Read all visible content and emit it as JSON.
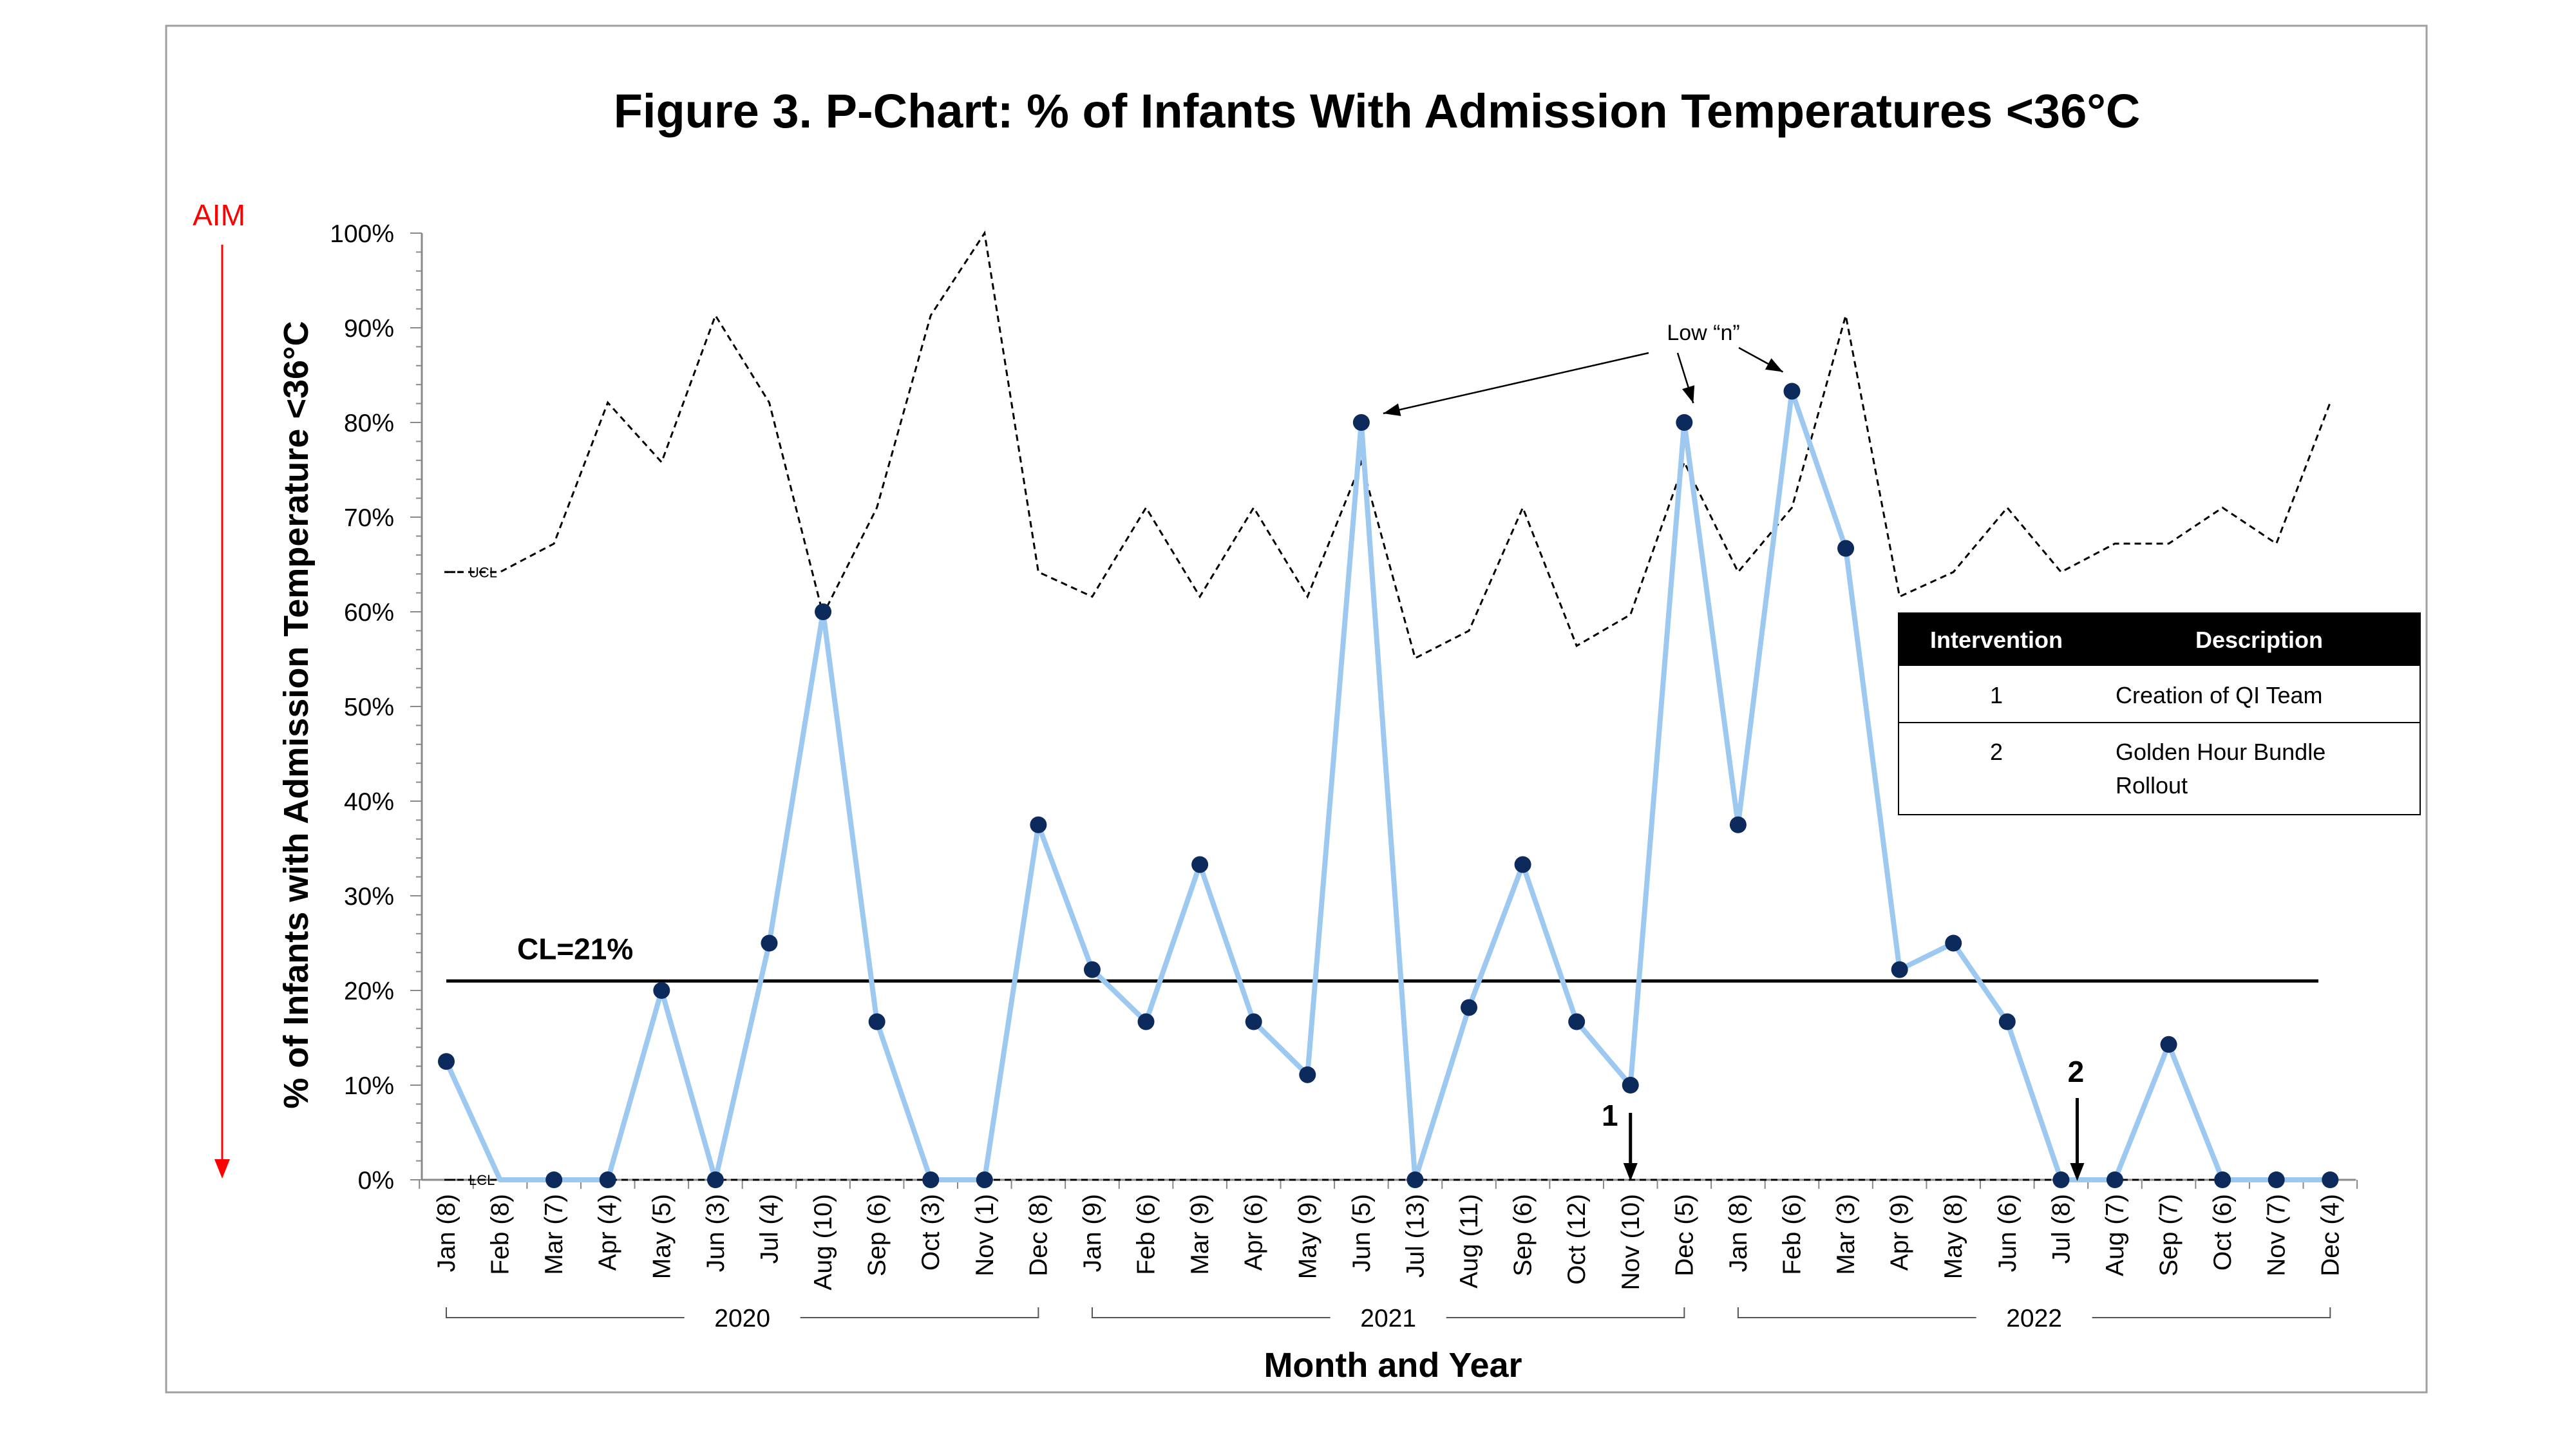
{
  "chart_data": {
    "type": "line",
    "title": "Figure 3. P-Chart: % of Infants With Admission Temperatures <36°C",
    "xlabel": "Month and Year",
    "ylabel": "% of Infants with Admission Temperature <36°C",
    "ylim": [
      0,
      100
    ],
    "y_ticks": [
      "0%",
      "10%",
      "20%",
      "30%",
      "40%",
      "50%",
      "60%",
      "70%",
      "80%",
      "90%",
      "100%"
    ],
    "categories": [
      "Jan (8)",
      "Feb (8)",
      "Mar (7)",
      "Apr (4)",
      "May (5)",
      "Jun (3)",
      "Jul (4)",
      "Aug (10)",
      "Sep (6)",
      "Oct (3)",
      "Nov (1)",
      "Dec (8)",
      "Jan (9)",
      "Feb (6)",
      "Mar (9)",
      "Apr (6)",
      "May (9)",
      "Jun (5)",
      "Jul (13)",
      "Aug (11)",
      "Sep (6)",
      "Oct (12)",
      "Nov (10)",
      "Dec (5)",
      "Jan (8)",
      "Feb (6)",
      "Mar (3)",
      "Apr (9)",
      "May (8)",
      "Jun (6)",
      "Jul (8)",
      "Aug (7)",
      "Sep (7)",
      "Oct (6)",
      "Nov (7)",
      "Dec (4)"
    ],
    "years": [
      {
        "label": "2020",
        "from": 0,
        "to": 11
      },
      {
        "label": "2021",
        "from": 12,
        "to": 23
      },
      {
        "label": "2022",
        "from": 24,
        "to": 35
      }
    ],
    "series": [
      {
        "values": [
          12.5,
          0,
          0,
          0,
          20,
          0,
          25,
          60,
          16.7,
          0,
          0,
          37.5,
          22.2,
          16.7,
          33.3,
          16.7,
          11.1,
          80,
          0,
          18.2,
          33.3,
          16.7,
          10,
          80,
          37.5,
          83.3,
          66.7,
          22.2,
          25,
          16.7,
          0,
          0,
          14.3,
          0,
          0,
          0
        ],
        "color": "#9dc8f0",
        "marker_color": "#0d2a5c"
      },
      {
        "name": "UCL",
        "values": [
          64.2,
          64.2,
          67.2,
          82.1,
          75.8,
          91.3,
          82.1,
          59.7,
          71,
          91.3,
          100,
          64.2,
          61.6,
          71,
          61.6,
          71,
          61.6,
          75.8,
          55.1,
          58,
          71,
          56.4,
          59.7,
          75.8,
          64.2,
          71,
          91.3,
          61.6,
          64.2,
          71,
          64.2,
          67.2,
          67.2,
          71,
          67.2,
          82.1
        ],
        "style": "dashed"
      },
      {
        "name": "LCL",
        "values": [
          0,
          0,
          0,
          0,
          0,
          0,
          0,
          0,
          0,
          0,
          0,
          0,
          0,
          0,
          0,
          0,
          0,
          0,
          0,
          0,
          0,
          0,
          0,
          0,
          0,
          0,
          0,
          0,
          0,
          0,
          0,
          0,
          0,
          0,
          0,
          0
        ],
        "style": "dashed"
      }
    ],
    "center_line": {
      "value": 21,
      "label": "CL=21%"
    },
    "annotations": {
      "low_n": "Low “n”",
      "low_n_targets": [
        17,
        23,
        25
      ],
      "interventions": [
        {
          "number": "1",
          "index": 22
        },
        {
          "number": "2",
          "index": 30.3
        }
      ],
      "aim": "AIM"
    },
    "intervention_table": {
      "headers": [
        "Intervention",
        "Description"
      ],
      "rows": [
        {
          "num": "1",
          "lines": [
            "Creation of QI Team"
          ]
        },
        {
          "num": "2",
          "lines": [
            "Golden Hour Bundle",
            "Rollout"
          ]
        }
      ]
    },
    "colors": {
      "data_line": "#9dc8f0",
      "markers": "#0d2a5c",
      "aim": "#ff0000",
      "table_header": "#000000"
    }
  }
}
